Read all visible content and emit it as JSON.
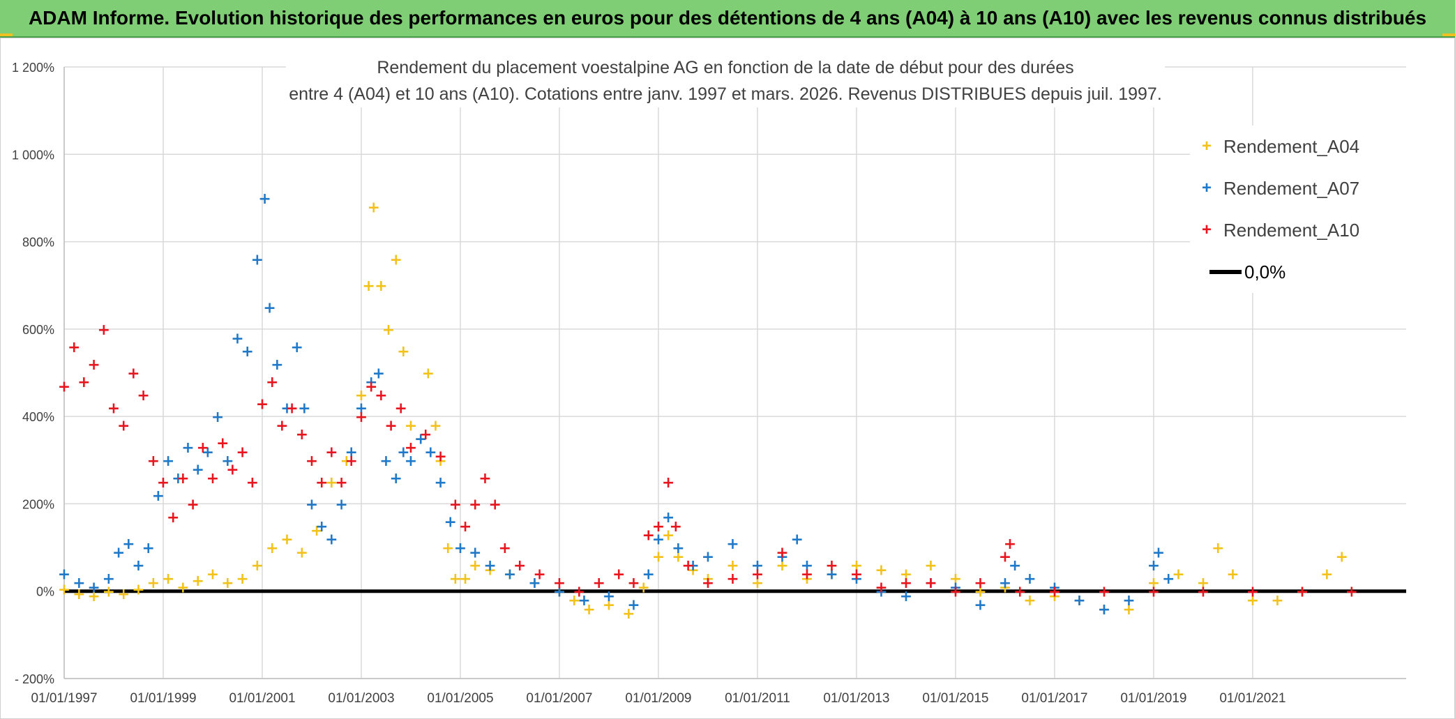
{
  "banner": {
    "title": "ADAM Informe. Evolution historique des performances en euros pour des détentions de 4 ans (A04) à 10 ans (A10) avec les revenus connus distribués"
  },
  "chart_data": {
    "type": "scatter",
    "title_line1": "Rendement du placement voestalpine AG en fonction de la date de début pour des durées",
    "title_line2": "entre 4 (A04) et 10 ans (A10). Cotations entre janv. 1997 et mars. 2026. Revenus DISTRIBUES depuis juil. 1997.",
    "xlabel": "",
    "ylabel": "",
    "xlim": [
      1997.0,
      2024.1
    ],
    "ylim": [
      -200,
      1200
    ],
    "x_ticks": [
      1997,
      1999,
      2001,
      2003,
      2005,
      2007,
      2009,
      2011,
      2013,
      2015,
      2017,
      2019,
      2021
    ],
    "x_tick_labels": [
      "01/01/1997",
      "01/01/1999",
      "01/01/2001",
      "01/01/2003",
      "01/01/2005",
      "01/01/2007",
      "01/01/2009",
      "01/01/2011",
      "01/01/2013",
      "01/01/2015",
      "01/01/2017",
      "01/01/2019",
      "01/01/2021"
    ],
    "y_ticks": [
      -200,
      0,
      200,
      400,
      600,
      800,
      1000,
      1200
    ],
    "y_tick_labels": [
      "- 200%",
      "0%",
      "200%",
      "400%",
      "600%",
      "800%",
      "1 000%",
      "1 200%"
    ],
    "grid": true,
    "legend_position": "top-right",
    "zero_line": {
      "name": "0,0%",
      "value": 0,
      "color": "#000000"
    },
    "series": [
      {
        "name": "Rendement_A04",
        "color": "#f2c21b",
        "marker": "+",
        "points": [
          [
            1997.0,
            5
          ],
          [
            1997.3,
            -5
          ],
          [
            1997.6,
            -10
          ],
          [
            1997.9,
            0
          ],
          [
            1998.2,
            -5
          ],
          [
            1998.5,
            5
          ],
          [
            1998.8,
            20
          ],
          [
            1999.1,
            30
          ],
          [
            1999.4,
            10
          ],
          [
            1999.7,
            25
          ],
          [
            2000.0,
            40
          ],
          [
            2000.3,
            20
          ],
          [
            2000.6,
            30
          ],
          [
            2000.9,
            60
          ],
          [
            2001.2,
            100
          ],
          [
            2001.5,
            120
          ],
          [
            2001.8,
            90
          ],
          [
            2002.1,
            140
          ],
          [
            2002.4,
            250
          ],
          [
            2002.7,
            300
          ],
          [
            2003.0,
            450
          ],
          [
            2003.15,
            700
          ],
          [
            2003.25,
            880
          ],
          [
            2003.4,
            700
          ],
          [
            2003.55,
            600
          ],
          [
            2003.7,
            760
          ],
          [
            2003.85,
            550
          ],
          [
            2004.0,
            380
          ],
          [
            2004.2,
            350
          ],
          [
            2004.35,
            500
          ],
          [
            2004.5,
            380
          ],
          [
            2004.6,
            300
          ],
          [
            2004.75,
            100
          ],
          [
            2004.9,
            30
          ],
          [
            2005.1,
            30
          ],
          [
            2005.3,
            60
          ],
          [
            2005.6,
            50
          ],
          [
            2006.0,
            40
          ],
          [
            2006.5,
            20
          ],
          [
            2007.0,
            0
          ],
          [
            2007.3,
            -20
          ],
          [
            2007.6,
            -40
          ],
          [
            2008.0,
            -30
          ],
          [
            2008.4,
            -50
          ],
          [
            2008.7,
            10
          ],
          [
            2009.0,
            80
          ],
          [
            2009.2,
            130
          ],
          [
            2009.4,
            80
          ],
          [
            2009.7,
            50
          ],
          [
            2010.0,
            30
          ],
          [
            2010.5,
            60
          ],
          [
            2011.0,
            20
          ],
          [
            2011.5,
            60
          ],
          [
            2012.0,
            30
          ],
          [
            2012.5,
            40
          ],
          [
            2013.0,
            60
          ],
          [
            2013.5,
            50
          ],
          [
            2014.0,
            40
          ],
          [
            2014.5,
            60
          ],
          [
            2015.0,
            30
          ],
          [
            2015.5,
            0
          ],
          [
            2016.0,
            10
          ],
          [
            2016.5,
            -20
          ],
          [
            2017.0,
            -10
          ],
          [
            2017.5,
            -20
          ],
          [
            2018.0,
            -40
          ],
          [
            2018.5,
            -40
          ],
          [
            2019.0,
            20
          ],
          [
            2019.5,
            40
          ],
          [
            2020.0,
            20
          ],
          [
            2020.3,
            100
          ],
          [
            2020.6,
            40
          ],
          [
            2021.0,
            -20
          ],
          [
            2021.5,
            -20
          ],
          [
            2022.0,
            0
          ],
          [
            2022.5,
            40
          ],
          [
            2022.8,
            80
          ]
        ]
      },
      {
        "name": "Rendement_A07",
        "color": "#1f78c8",
        "marker": "+",
        "points": [
          [
            1997.0,
            40
          ],
          [
            1997.3,
            20
          ],
          [
            1997.6,
            10
          ],
          [
            1997.9,
            30
          ],
          [
            1998.1,
            90
          ],
          [
            1998.3,
            110
          ],
          [
            1998.5,
            60
          ],
          [
            1998.7,
            100
          ],
          [
            1998.9,
            220
          ],
          [
            1999.1,
            300
          ],
          [
            1999.3,
            260
          ],
          [
            1999.5,
            330
          ],
          [
            1999.7,
            280
          ],
          [
            1999.9,
            320
          ],
          [
            2000.1,
            400
          ],
          [
            2000.3,
            300
          ],
          [
            2000.5,
            580
          ],
          [
            2000.7,
            550
          ],
          [
            2000.9,
            760
          ],
          [
            2001.05,
            900
          ],
          [
            2001.15,
            650
          ],
          [
            2001.3,
            520
          ],
          [
            2001.5,
            420
          ],
          [
            2001.7,
            560
          ],
          [
            2001.85,
            420
          ],
          [
            2002.0,
            200
          ],
          [
            2002.2,
            150
          ],
          [
            2002.4,
            120
          ],
          [
            2002.6,
            200
          ],
          [
            2002.8,
            320
          ],
          [
            2003.0,
            420
          ],
          [
            2003.2,
            480
          ],
          [
            2003.35,
            500
          ],
          [
            2003.5,
            300
          ],
          [
            2003.7,
            260
          ],
          [
            2003.85,
            320
          ],
          [
            2004.0,
            300
          ],
          [
            2004.2,
            350
          ],
          [
            2004.4,
            320
          ],
          [
            2004.6,
            250
          ],
          [
            2004.8,
            160
          ],
          [
            2005.0,
            100
          ],
          [
            2005.3,
            90
          ],
          [
            2005.6,
            60
          ],
          [
            2006.0,
            40
          ],
          [
            2006.5,
            20
          ],
          [
            2007.0,
            0
          ],
          [
            2007.5,
            -20
          ],
          [
            2008.0,
            -10
          ],
          [
            2008.5,
            -30
          ],
          [
            2008.8,
            40
          ],
          [
            2009.0,
            120
          ],
          [
            2009.2,
            170
          ],
          [
            2009.4,
            100
          ],
          [
            2009.7,
            60
          ],
          [
            2010.0,
            80
          ],
          [
            2010.5,
            110
          ],
          [
            2011.0,
            60
          ],
          [
            2011.5,
            80
          ],
          [
            2011.8,
            120
          ],
          [
            2012.0,
            60
          ],
          [
            2012.5,
            40
          ],
          [
            2013.0,
            30
          ],
          [
            2013.5,
            0
          ],
          [
            2014.0,
            -10
          ],
          [
            2014.5,
            20
          ],
          [
            2015.0,
            10
          ],
          [
            2015.5,
            -30
          ],
          [
            2016.0,
            20
          ],
          [
            2016.2,
            60
          ],
          [
            2016.5,
            30
          ],
          [
            2017.0,
            10
          ],
          [
            2017.5,
            -20
          ],
          [
            2018.0,
            -40
          ],
          [
            2018.5,
            -20
          ],
          [
            2019.0,
            60
          ],
          [
            2019.1,
            90
          ],
          [
            2019.3,
            30
          ]
        ]
      },
      {
        "name": "Rendement_A10",
        "color": "#e8141e",
        "marker": "+",
        "points": [
          [
            1997.0,
            470
          ],
          [
            1997.2,
            560
          ],
          [
            1997.4,
            480
          ],
          [
            1997.6,
            520
          ],
          [
            1997.8,
            600
          ],
          [
            1998.0,
            420
          ],
          [
            1998.2,
            380
          ],
          [
            1998.4,
            500
          ],
          [
            1998.6,
            450
          ],
          [
            1998.8,
            300
          ],
          [
            1999.0,
            250
          ],
          [
            1999.2,
            170
          ],
          [
            1999.4,
            260
          ],
          [
            1999.6,
            200
          ],
          [
            1999.8,
            330
          ],
          [
            2000.0,
            260
          ],
          [
            2000.2,
            340
          ],
          [
            2000.4,
            280
          ],
          [
            2000.6,
            320
          ],
          [
            2000.8,
            250
          ],
          [
            2001.0,
            430
          ],
          [
            2001.2,
            480
          ],
          [
            2001.4,
            380
          ],
          [
            2001.6,
            420
          ],
          [
            2001.8,
            360
          ],
          [
            2002.0,
            300
          ],
          [
            2002.2,
            250
          ],
          [
            2002.4,
            320
          ],
          [
            2002.6,
            250
          ],
          [
            2002.8,
            300
          ],
          [
            2003.0,
            400
          ],
          [
            2003.2,
            470
          ],
          [
            2003.4,
            450
          ],
          [
            2003.6,
            380
          ],
          [
            2003.8,
            420
          ],
          [
            2004.0,
            330
          ],
          [
            2004.3,
            360
          ],
          [
            2004.6,
            310
          ],
          [
            2004.9,
            200
          ],
          [
            2005.1,
            150
          ],
          [
            2005.3,
            200
          ],
          [
            2005.5,
            260
          ],
          [
            2005.7,
            200
          ],
          [
            2005.9,
            100
          ],
          [
            2006.2,
            60
          ],
          [
            2006.6,
            40
          ],
          [
            2007.0,
            20
          ],
          [
            2007.4,
            0
          ],
          [
            2007.8,
            20
          ],
          [
            2008.2,
            40
          ],
          [
            2008.5,
            20
          ],
          [
            2008.8,
            130
          ],
          [
            2009.0,
            150
          ],
          [
            2009.2,
            250
          ],
          [
            2009.35,
            150
          ],
          [
            2009.6,
            60
          ],
          [
            2010.0,
            20
          ],
          [
            2010.5,
            30
          ],
          [
            2011.0,
            40
          ],
          [
            2011.5,
            90
          ],
          [
            2012.0,
            40
          ],
          [
            2012.5,
            60
          ],
          [
            2013.0,
            40
          ],
          [
            2013.5,
            10
          ],
          [
            2014.0,
            20
          ],
          [
            2014.5,
            20
          ],
          [
            2015.0,
            0
          ],
          [
            2015.5,
            20
          ],
          [
            2016.0,
            80
          ],
          [
            2016.1,
            110
          ],
          [
            2016.3,
            0
          ],
          [
            2017.0,
            0
          ],
          [
            2018.0,
            0
          ],
          [
            2019.0,
            0
          ],
          [
            2020.0,
            0
          ],
          [
            2021.0,
            0
          ],
          [
            2022.0,
            0
          ],
          [
            2023.0,
            0
          ]
        ]
      }
    ]
  }
}
